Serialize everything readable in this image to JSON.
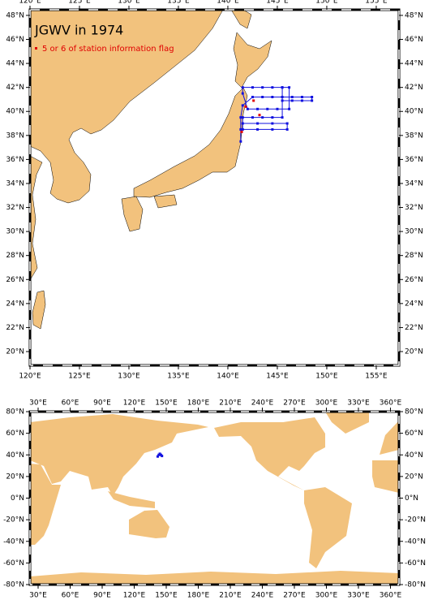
{
  "title": "JGWV in 1974",
  "legend": "5 or 6 of station information flag",
  "top_map": {
    "xlim": [
      120,
      157.3
    ],
    "ylim": [
      18.85,
      48.47
    ],
    "lon_ticks": [
      {
        "value": 120,
        "label": "120°E"
      },
      {
        "value": 125,
        "label": "125°E"
      },
      {
        "value": 130,
        "label": "130°E"
      },
      {
        "value": 135,
        "label": "135°E"
      },
      {
        "value": 140,
        "label": "140°E"
      },
      {
        "value": 145,
        "label": "145°E"
      },
      {
        "value": 150,
        "label": "150°E"
      },
      {
        "value": 155,
        "label": "155°E"
      }
    ],
    "lat_ticks": [
      {
        "value": 20,
        "label": "20°N"
      },
      {
        "value": 22,
        "label": "22°N"
      },
      {
        "value": 24,
        "label": "24°N"
      },
      {
        "value": 26,
        "label": "26°N"
      },
      {
        "value": 28,
        "label": "28°N"
      },
      {
        "value": 30,
        "label": "30°N"
      },
      {
        "value": 32,
        "label": "32°N"
      },
      {
        "value": 34,
        "label": "34°N"
      },
      {
        "value": 36,
        "label": "36°N"
      },
      {
        "value": 38,
        "label": "38°N"
      },
      {
        "value": 40,
        "label": "40°N"
      },
      {
        "value": 42,
        "label": "42°N"
      },
      {
        "value": 44,
        "label": "44°N"
      },
      {
        "value": 46,
        "label": "46°N"
      },
      {
        "value": 48,
        "label": "48°N"
      }
    ],
    "stations": {
      "lon": [
        141.3,
        141.3,
        141.3,
        141.5,
        142.5,
        143.5,
        144.5,
        145.5,
        146.5,
        147.5,
        148.5,
        148.5,
        147.5,
        146.5,
        145.5,
        145.5,
        146.2,
        146.2,
        145,
        144,
        143,
        142,
        141.5,
        141.5,
        142.5,
        143.5,
        144.5,
        145.5,
        145.5,
        144.5,
        143.5,
        142.5,
        141.5,
        141.5,
        143,
        144.5,
        146,
        146,
        144.5,
        143,
        141.5
      ],
      "lat": [
        37.5,
        38.5,
        39.5,
        40.5,
        41.2,
        41.2,
        41.2,
        41.2,
        41.2,
        41.2,
        41.2,
        40.9,
        40.9,
        40.9,
        40.9,
        42,
        42,
        40.2,
        40.2,
        40.2,
        40.2,
        40.2,
        41.5,
        42,
        42,
        42,
        42,
        42,
        39.5,
        39.5,
        39.5,
        39.5,
        39.5,
        38.5,
        38.5,
        38.5,
        38.5,
        39,
        39,
        39,
        39
      ]
    },
    "flagged": {
      "lon": [
        141.4,
        141.8,
        142.6,
        143.2
      ],
      "lat": [
        38.3,
        40.4,
        40.9,
        39.7
      ]
    }
  },
  "bottom_map": {
    "xlim": [
      22.4,
      368
    ],
    "ylim": [
      -80,
      80
    ],
    "lon_ticks": [
      {
        "value": 30,
        "label": "30°E"
      },
      {
        "value": 60,
        "label": "60°E"
      },
      {
        "value": 90,
        "label": "90°E"
      },
      {
        "value": 120,
        "label": "120°E"
      },
      {
        "value": 150,
        "label": "150°E"
      },
      {
        "value": 180,
        "label": "180°E"
      },
      {
        "value": 210,
        "label": "210°E"
      },
      {
        "value": 240,
        "label": "240°E"
      },
      {
        "value": 270,
        "label": "270°E"
      },
      {
        "value": 300,
        "label": "300°E"
      },
      {
        "value": 330,
        "label": "330°E"
      },
      {
        "value": 360,
        "label": "360°E"
      }
    ],
    "lat_ticks": [
      {
        "value": -80,
        "label": "-80°N"
      },
      {
        "value": -60,
        "label": "-60°N"
      },
      {
        "value": -40,
        "label": "-40°N"
      },
      {
        "value": -20,
        "label": "-20°N"
      },
      {
        "value": 0,
        "label": "0°N"
      },
      {
        "value": 20,
        "label": "20°N"
      },
      {
        "value": 40,
        "label": "40°N"
      },
      {
        "value": 60,
        "label": "60°N"
      },
      {
        "value": 80,
        "label": "80°N"
      }
    ],
    "stations": {
      "lon": [
        142,
        143,
        144,
        145,
        146
      ],
      "lat": [
        38.5,
        40,
        41,
        40,
        39
      ]
    }
  }
}
